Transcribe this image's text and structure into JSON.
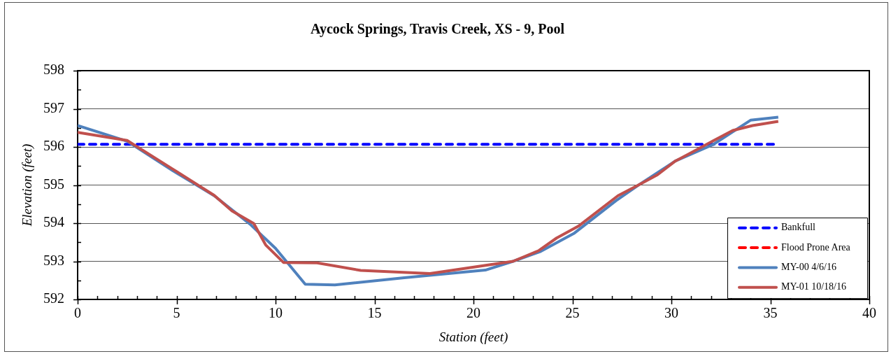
{
  "chart_data": {
    "type": "line",
    "title": "Aycock Springs, Travis Creek, XS - 9, Pool",
    "xlabel": "Station (feet)",
    "ylabel": "Elevation (feet)",
    "xlim": [
      0,
      40
    ],
    "ylim": [
      592,
      598
    ],
    "xticks": [
      0,
      {
        "value": 1,
        "label": null
      },
      {
        "value": 2,
        "label": null
      },
      {
        "value": 3,
        "label": null
      },
      {
        "value": 4,
        "label": null
      },
      5,
      {
        "value": 6,
        "label": null
      },
      {
        "value": 7,
        "label": null
      },
      {
        "value": 8,
        "label": null
      },
      {
        "value": 9,
        "label": null
      },
      10,
      {
        "value": 11,
        "label": null
      },
      {
        "value": 12,
        "label": null
      },
      {
        "value": 13,
        "label": null
      },
      {
        "value": 14,
        "label": null
      },
      15,
      {
        "value": 16,
        "label": null
      },
      {
        "value": 17,
        "label": null
      },
      {
        "value": 18,
        "label": null
      },
      {
        "value": 19,
        "label": null
      },
      20,
      {
        "value": 21,
        "label": null
      },
      {
        "value": 22,
        "label": null
      },
      {
        "value": 23,
        "label": null
      },
      {
        "value": 24,
        "label": null
      },
      25,
      {
        "value": 26,
        "label": null
      },
      {
        "value": 27,
        "label": null
      },
      {
        "value": 28,
        "label": null
      },
      {
        "value": 29,
        "label": null
      },
      30,
      {
        "value": 31,
        "label": null
      },
      {
        "value": 32,
        "label": null
      },
      {
        "value": 33,
        "label": null
      },
      {
        "value": 34,
        "label": null
      },
      35,
      {
        "value": 36,
        "label": null
      },
      {
        "value": 37,
        "label": null
      },
      {
        "value": 38,
        "label": null
      },
      {
        "value": 39,
        "label": null
      },
      40
    ],
    "yticks": [
      592,
      {
        "value": 592.5,
        "label": null
      },
      593,
      {
        "value": 593.5,
        "label": null
      },
      594,
      {
        "value": 594.5,
        "label": null
      },
      595,
      {
        "value": 595.5,
        "label": null
      },
      596,
      {
        "value": 596.5,
        "label": null
      },
      597,
      {
        "value": 597.5,
        "label": null
      },
      598
    ],
    "grid": "y",
    "legend": "bottom right",
    "series": [
      {
        "name": "Bankfull",
        "color": "#0000ff",
        "line_style": "dashed",
        "x": [
          0,
          35.3
        ],
        "values": [
          596.07,
          596.07
        ]
      },
      {
        "name": "Flood Prone Area",
        "color": "#ff0000",
        "line_style": "dashed"
      },
      {
        "name": "MY-00 4/6/16",
        "color": "#4f81bd",
        "x": [
          0,
          2.5,
          4.8,
          6.9,
          8.7,
          10.0,
          11.5,
          13.0,
          16.5,
          20.6,
          22.0,
          23.4,
          25.1,
          27.2,
          28.4,
          30.2,
          32.1,
          34.0,
          35.4
        ],
        "values": [
          596.56,
          596.15,
          595.38,
          594.72,
          593.98,
          593.34,
          592.4,
          592.38,
          592.57,
          592.77,
          593.0,
          593.26,
          593.74,
          594.59,
          595.02,
          595.63,
          596.06,
          596.7,
          596.78
        ]
      },
      {
        "name": "MY-01 10/18/16",
        "color": "#c0504d",
        "x": [
          0,
          2.5,
          4.8,
          6.9,
          7.8,
          8.9,
          9.5,
          10.4,
          12.1,
          14.3,
          17.8,
          22.0,
          23.3,
          24.2,
          25.3,
          27.3,
          28.4,
          29.3,
          30.2,
          30.9,
          32.0,
          33.1,
          34.1,
          35.4
        ],
        "values": [
          596.38,
          596.17,
          595.42,
          594.73,
          594.32,
          593.99,
          593.43,
          592.97,
          592.96,
          592.76,
          592.68,
          593.0,
          593.28,
          593.61,
          593.92,
          594.72,
          595.02,
          595.27,
          595.63,
          595.82,
          596.13,
          596.43,
          596.56,
          596.67
        ]
      }
    ]
  }
}
